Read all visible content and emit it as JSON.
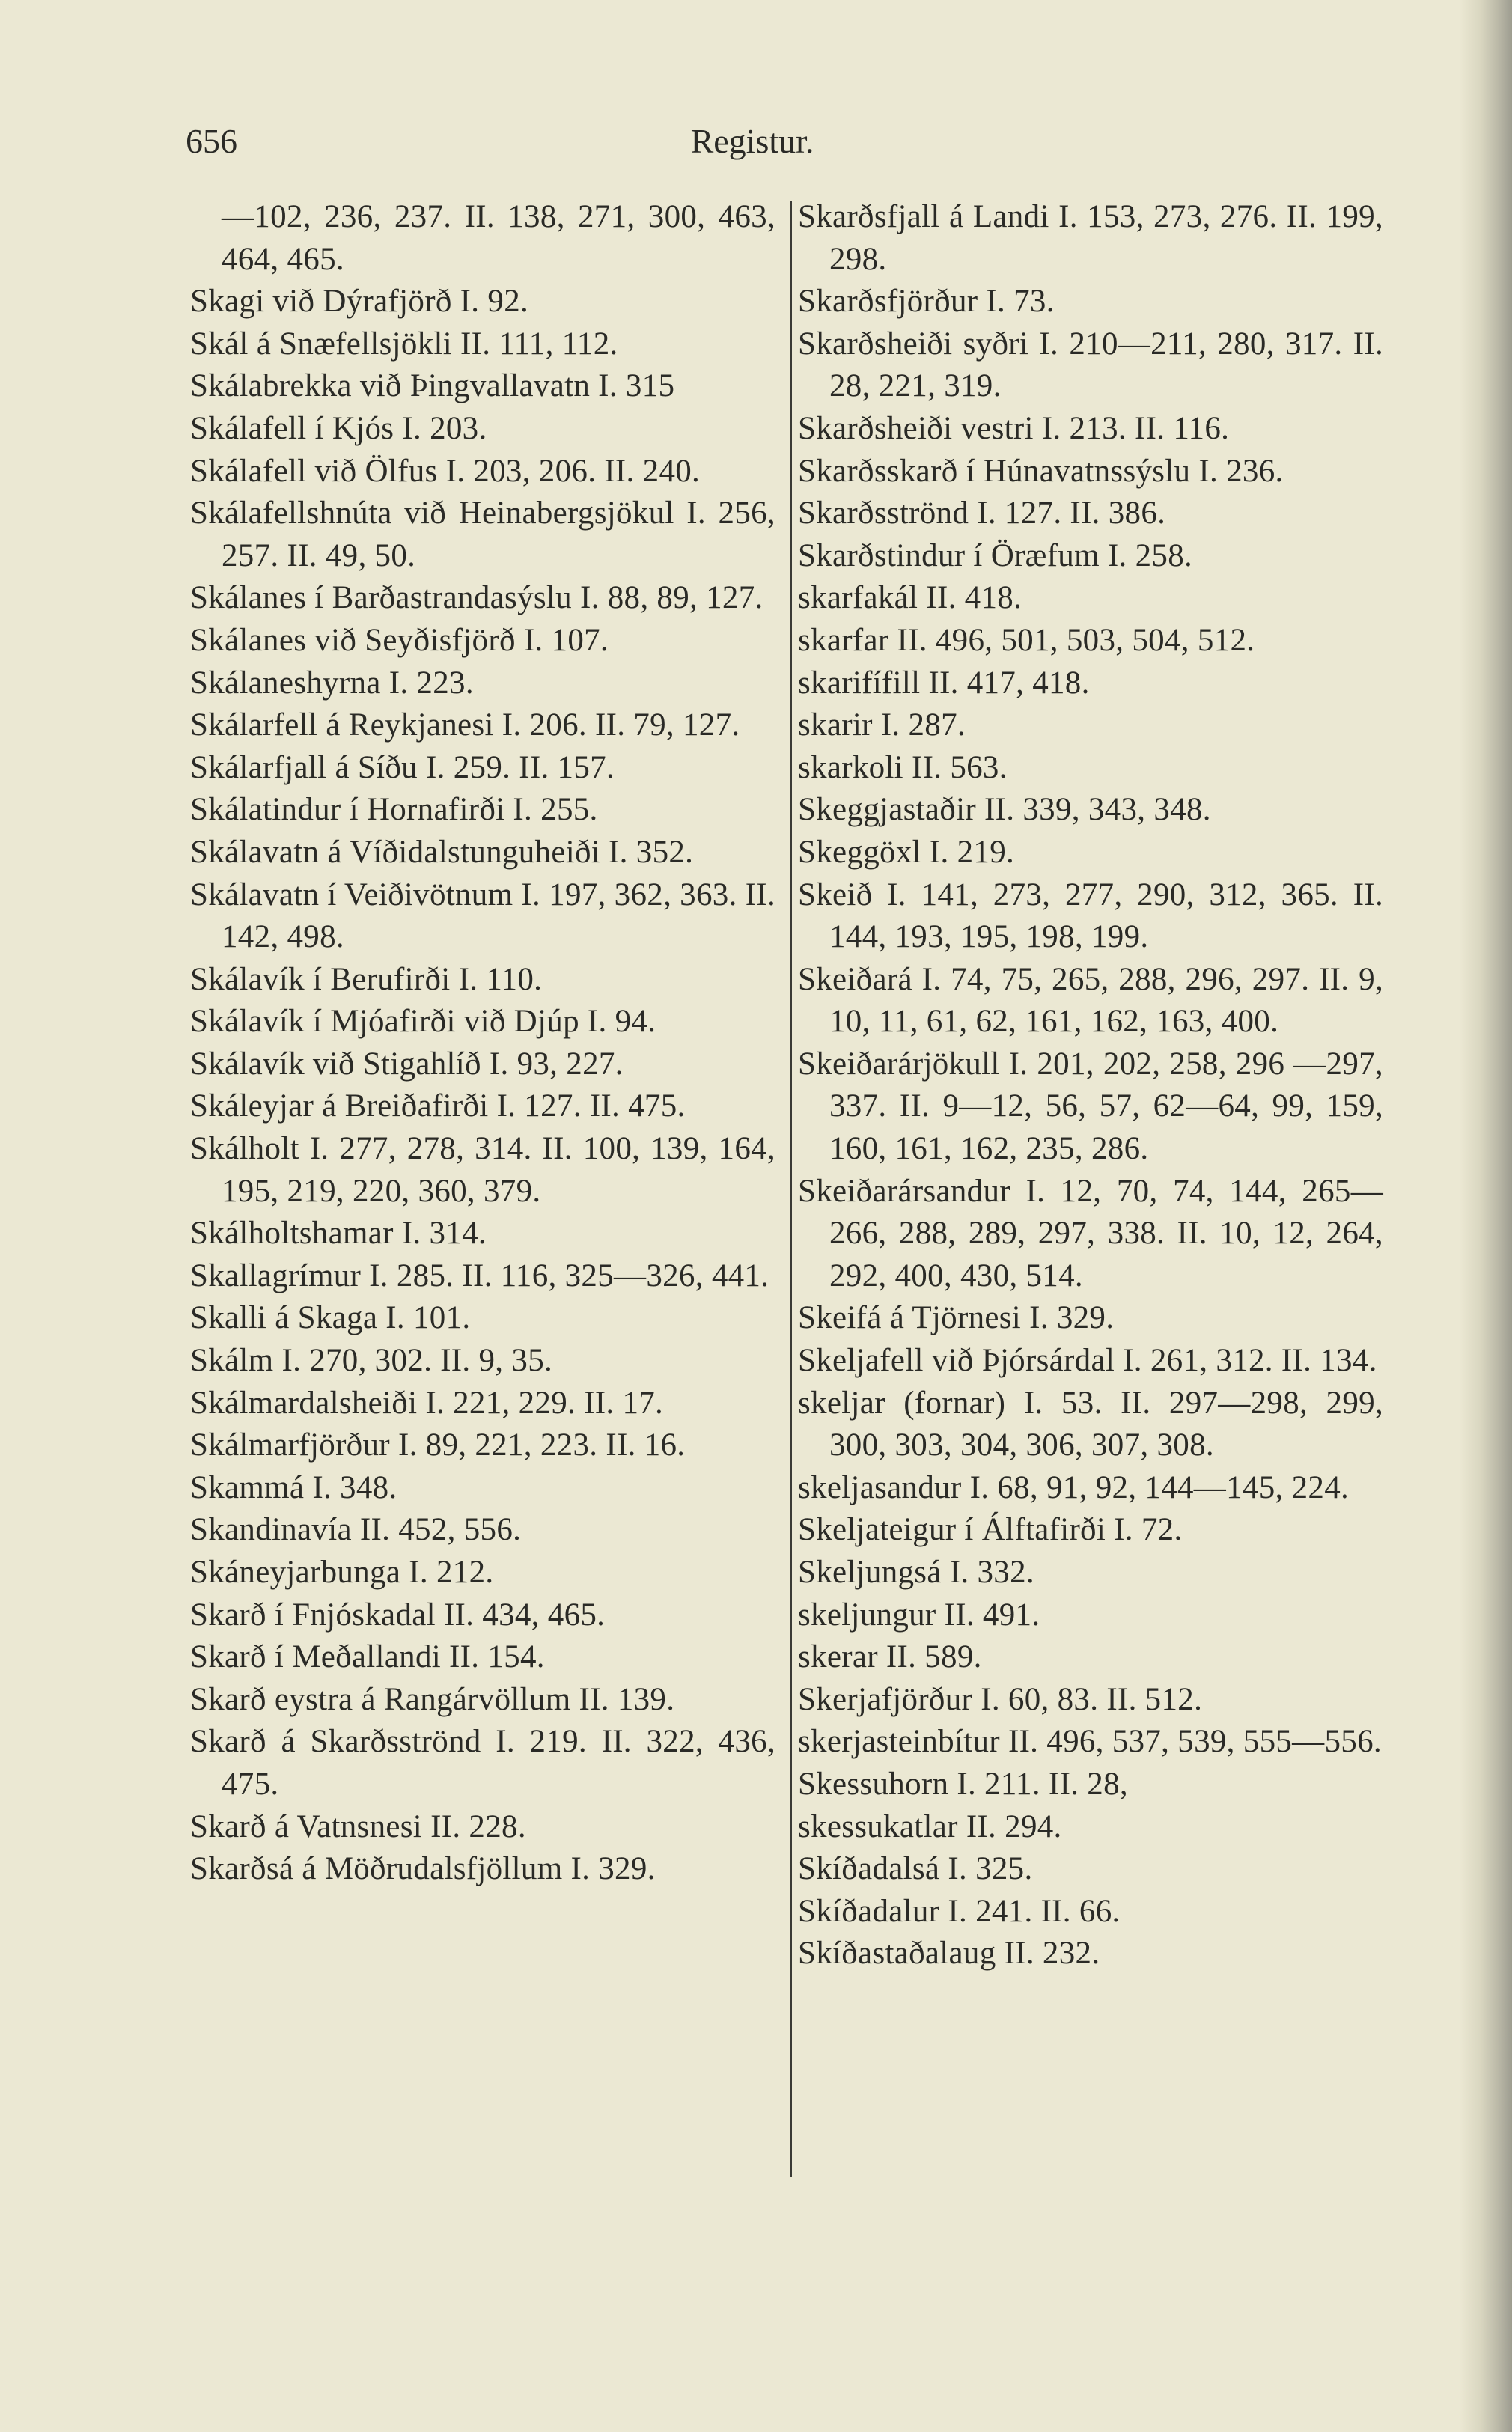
{
  "header": {
    "page_number": "656",
    "running_head": "Registur."
  },
  "left_column": [
    {
      "text": "—102, 236, 237. II. 138, 271, 300, 463, 464, 465.",
      "continuation": true
    },
    {
      "text": "Skagi við Dýrafjörð I. 92."
    },
    {
      "text": "Skál á Snæfellsjökli II. 111, 112."
    },
    {
      "text": "Skálabrekka við Þingvallavatn I. 315"
    },
    {
      "text": "Skálafell í Kjós I. 203."
    },
    {
      "text": "Skálafell við Ölfus I. 203, 206. II. 240."
    },
    {
      "text": "Skálafellshnúta við Heinabergsjökul I. 256, 257. II. 49, 50."
    },
    {
      "text": "Skálanes í Barðastrandasýslu I. 88, 89, 127."
    },
    {
      "text": "Skálanes við Seyðisfjörð I. 107."
    },
    {
      "text": "Skálaneshyrna I. 223."
    },
    {
      "text": "Skálarfell á Reykjanesi I. 206. II. 79, 127."
    },
    {
      "text": "Skálarfjall á Síðu I. 259. II. 157."
    },
    {
      "text": "Skálatindur í Hornafirði I. 255."
    },
    {
      "text": "Skálavatn á Víðidalstunguheiði I. 352."
    },
    {
      "text": "Skálavatn í Veiðivötnum I. 197, 362, 363. II. 142, 498."
    },
    {
      "text": "Skálavík í Berufirði I. 110."
    },
    {
      "text": "Skálavík í Mjóafirði við Djúp I. 94."
    },
    {
      "text": "Skálavík við Stigahlíð I. 93, 227."
    },
    {
      "text": "Skáleyjar á Breiðafirði I. 127. II. 475."
    },
    {
      "text": "Skálholt I. 277, 278, 314. II. 100, 139, 164, 195, 219, 220, 360, 379."
    },
    {
      "text": "Skálholtshamar I. 314."
    },
    {
      "text": "Skallagrímur I. 285. II. 116, 325—326, 441."
    },
    {
      "text": "Skalli á Skaga I. 101."
    },
    {
      "text": "Skálm I. 270, 302. II. 9, 35."
    },
    {
      "text": "Skálmardalsheiði I. 221, 229. II. 17."
    },
    {
      "text": "Skálmarfjörður I. 89, 221, 223. II. 16."
    },
    {
      "text": "Skammá I. 348."
    },
    {
      "text": "Skandinavía II. 452, 556."
    },
    {
      "text": "Skáneyjarbunga I. 212."
    },
    {
      "text": "Skarð í Fnjóskadal II. 434, 465."
    },
    {
      "text": "Skarð í Meðallandi II. 154."
    },
    {
      "text": "Skarð eystra á Rangárvöllum II. 139."
    },
    {
      "text": "Skarð á Skarðsströnd I. 219. II. 322, 436, 475."
    },
    {
      "text": "Skarð á Vatnsnesi II. 228."
    },
    {
      "text": "Skarðsá á Möðrudalsfjöllum I. 329."
    }
  ],
  "right_column": [
    {
      "text": "Skarðsfjall á Landi I. 153, 273, 276. II. 199, 298."
    },
    {
      "text": "Skarðsfjörður I. 73."
    },
    {
      "text": "Skarðsheiði syðri I. 210—211, 280, 317. II. 28, 221, 319."
    },
    {
      "text": "Skarðsheiði vestri I. 213. II. 116."
    },
    {
      "text": "Skarðsskarð í Húnavatnssýslu I. 236."
    },
    {
      "text": "Skarðsströnd I. 127. II. 386."
    },
    {
      "text": "Skarðstindur í Öræfum I. 258."
    },
    {
      "text": "skarfakál II. 418."
    },
    {
      "text": "skarfar II. 496, 501, 503, 504, 512."
    },
    {
      "text": "skarifífill II. 417, 418."
    },
    {
      "text": "skarir I. 287."
    },
    {
      "text": "skarkoli II. 563."
    },
    {
      "text": "Skeggjastaðir II. 339, 343, 348."
    },
    {
      "text": "Skeggöxl I. 219."
    },
    {
      "text": "Skeið I. 141, 273, 277, 290, 312, 365. II. 144, 193, 195, 198, 199."
    },
    {
      "text": "Skeiðará I. 74, 75, 265, 288, 296, 297. II. 9, 10, 11, 61, 62, 161, 162, 163, 400."
    },
    {
      "text": "Skeiðarárjökull I. 201, 202, 258, 296 —297, 337. II. 9—12, 56, 57, 62—64, 99, 159, 160, 161, 162, 235, 286."
    },
    {
      "text": "Skeiðarársandur I. 12, 70, 74, 144, 265—266, 288, 289, 297, 338. II. 10, 12, 264, 292, 400, 430, 514."
    },
    {
      "text": "Skeifá á Tjörnesi I. 329."
    },
    {
      "text": "Skeljafell við Þjórsárdal I. 261, 312. II. 134."
    },
    {
      "text": "skeljar (fornar) I. 53. II. 297—298, 299, 300, 303, 304, 306, 307, 308."
    },
    {
      "text": "skeljasandur I. 68, 91, 92, 144—145, 224."
    },
    {
      "text": "Skeljateigur í Álftafirði I. 72."
    },
    {
      "text": "Skeljungsá I. 332."
    },
    {
      "text": "skeljungur II. 491."
    },
    {
      "text": "skerar II. 589."
    },
    {
      "text": "Skerjafjörður I. 60, 83. II. 512."
    },
    {
      "text": "skerjasteinbítur II. 496, 537, 539, 555—556."
    },
    {
      "text": "Skessuhorn I. 211. II. 28,"
    },
    {
      "text": "skessukatlar II. 294."
    },
    {
      "text": "Skíðadalsá I. 325."
    },
    {
      "text": "Skíðadalur I. 241. II. 66."
    },
    {
      "text": "Skíðastaðalaug II. 232."
    }
  ],
  "colors": {
    "paper": "#ebe8d3",
    "ink": "#2a2a26"
  }
}
